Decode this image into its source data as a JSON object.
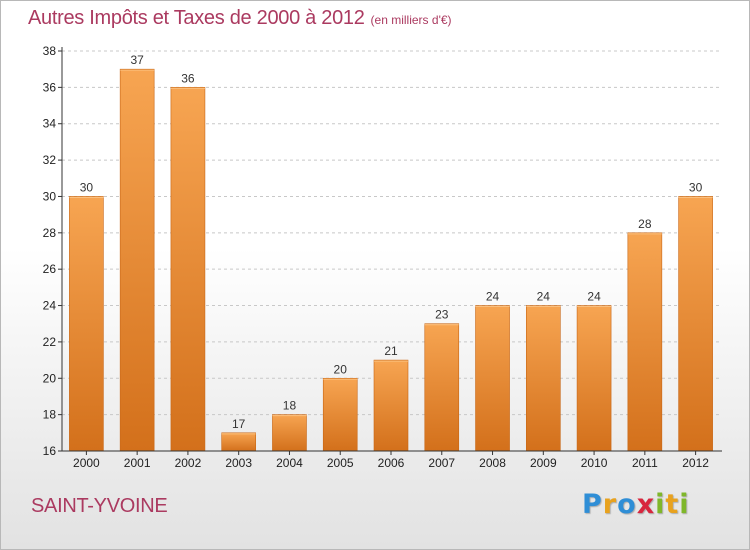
{
  "title": {
    "main": "Autres Impôts et Taxes de 2000 à 2012",
    "unit": "(en milliers d'€)"
  },
  "commune": "SAINT-YVOINE",
  "logo": {
    "letters": [
      {
        "char": "P",
        "color": "#2f8ed6"
      },
      {
        "char": "r",
        "color": "#e8a21e"
      },
      {
        "char": "o",
        "color": "#2f8ed6"
      },
      {
        "char": "x",
        "color": "#d8263e"
      },
      {
        "char": "i",
        "color": "#7fb72a"
      },
      {
        "char": "t",
        "color": "#e8a21e"
      },
      {
        "char": "i",
        "color": "#7fb72a"
      }
    ]
  },
  "colors": {
    "bar_light": "#f7a552",
    "bar_dark": "#d3701b",
    "grid": "#c8c8c8",
    "axis": "#333333",
    "title": "#ab3a60"
  },
  "chart_data": {
    "type": "bar",
    "categories": [
      "2000",
      "2001",
      "2002",
      "2003",
      "2004",
      "2005",
      "2006",
      "2007",
      "2008",
      "2009",
      "2010",
      "2011",
      "2012"
    ],
    "values": [
      30,
      37,
      36,
      17,
      18,
      20,
      21,
      23,
      24,
      24,
      24,
      28,
      30
    ],
    "ylim": [
      16,
      38
    ],
    "yticks": [
      16,
      18,
      20,
      22,
      24,
      26,
      28,
      30,
      32,
      34,
      36,
      38
    ],
    "grid": "dashed horizontal",
    "legend": "none"
  }
}
